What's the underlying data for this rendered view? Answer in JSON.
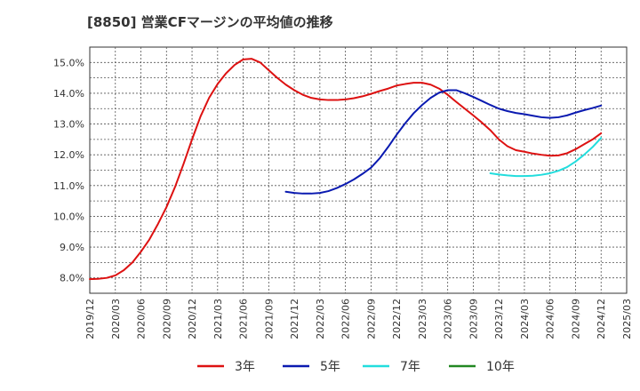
{
  "chart_data": {
    "type": "line",
    "title": "[8850]  営業CFマージンの平均値の推移",
    "xlabel": "",
    "ylabel": "",
    "x_ticks": [
      "2019/12",
      "2020/03",
      "2020/06",
      "2020/09",
      "2020/12",
      "2021/03",
      "2021/06",
      "2021/09",
      "2021/12",
      "2022/03",
      "2022/06",
      "2022/09",
      "2022/12",
      "2023/03",
      "2023/06",
      "2023/09",
      "2023/12",
      "2024/03",
      "2024/06",
      "2024/09",
      "2024/12",
      "2025/03"
    ],
    "y_ticks": [
      "8.0%",
      "9.0%",
      "10.0%",
      "11.0%",
      "12.0%",
      "13.0%",
      "14.0%",
      "15.0%"
    ],
    "ylim": [
      7.5,
      15.5
    ],
    "grid": true,
    "legend_position": "bottom",
    "series": [
      {
        "name": "3年",
        "color": "#dd1111",
        "points": [
          [
            "2019/12",
            7.96
          ],
          [
            "2020/01",
            7.97
          ],
          [
            "2020/02",
            8.0
          ],
          [
            "2020/03",
            8.08
          ],
          [
            "2020/04",
            8.25
          ],
          [
            "2020/05",
            8.5
          ],
          [
            "2020/06",
            8.85
          ],
          [
            "2020/07",
            9.25
          ],
          [
            "2020/08",
            9.75
          ],
          [
            "2020/09",
            10.3
          ],
          [
            "2020/10",
            10.95
          ],
          [
            "2020/11",
            11.7
          ],
          [
            "2020/12",
            12.5
          ],
          [
            "2021/01",
            13.25
          ],
          [
            "2021/02",
            13.85
          ],
          [
            "2021/03",
            14.3
          ],
          [
            "2021/04",
            14.65
          ],
          [
            "2021/05",
            14.92
          ],
          [
            "2021/06",
            15.1
          ],
          [
            "2021/07",
            15.12
          ],
          [
            "2021/08",
            15.0
          ],
          [
            "2021/09",
            14.75
          ],
          [
            "2021/10",
            14.5
          ],
          [
            "2021/11",
            14.28
          ],
          [
            "2021/12",
            14.1
          ],
          [
            "2022/01",
            13.95
          ],
          [
            "2022/02",
            13.85
          ],
          [
            "2022/03",
            13.8
          ],
          [
            "2022/04",
            13.78
          ],
          [
            "2022/05",
            13.78
          ],
          [
            "2022/06",
            13.8
          ],
          [
            "2022/07",
            13.84
          ],
          [
            "2022/08",
            13.9
          ],
          [
            "2022/09",
            13.98
          ],
          [
            "2022/10",
            14.07
          ],
          [
            "2022/11",
            14.15
          ],
          [
            "2022/12",
            14.25
          ],
          [
            "2023/01",
            14.3
          ],
          [
            "2023/02",
            14.34
          ],
          [
            "2023/03",
            14.34
          ],
          [
            "2023/04",
            14.28
          ],
          [
            "2023/05",
            14.15
          ],
          [
            "2023/06",
            13.95
          ],
          [
            "2023/07",
            13.72
          ],
          [
            "2023/08",
            13.5
          ],
          [
            "2023/09",
            13.28
          ],
          [
            "2023/10",
            13.05
          ],
          [
            "2023/11",
            12.8
          ],
          [
            "2023/12",
            12.5
          ],
          [
            "2024/01",
            12.28
          ],
          [
            "2024/02",
            12.15
          ],
          [
            "2024/03",
            12.1
          ],
          [
            "2024/04",
            12.04
          ],
          [
            "2024/05",
            12.0
          ],
          [
            "2024/06",
            11.97
          ],
          [
            "2024/07",
            11.98
          ],
          [
            "2024/08",
            12.05
          ],
          [
            "2024/09",
            12.18
          ],
          [
            "2024/10",
            12.34
          ],
          [
            "2024/11",
            12.5
          ],
          [
            "2024/12",
            12.7
          ]
        ]
      },
      {
        "name": "5年",
        "color": "#0a1ab0",
        "points": [
          [
            "2021/11",
            10.8
          ],
          [
            "2021/12",
            10.76
          ],
          [
            "2022/01",
            10.74
          ],
          [
            "2022/02",
            10.74
          ],
          [
            "2022/03",
            10.76
          ],
          [
            "2022/04",
            10.82
          ],
          [
            "2022/05",
            10.92
          ],
          [
            "2022/06",
            11.05
          ],
          [
            "2022/07",
            11.2
          ],
          [
            "2022/08",
            11.38
          ],
          [
            "2022/09",
            11.58
          ],
          [
            "2022/10",
            11.88
          ],
          [
            "2022/11",
            12.25
          ],
          [
            "2022/12",
            12.65
          ],
          [
            "2023/01",
            13.02
          ],
          [
            "2023/02",
            13.35
          ],
          [
            "2023/03",
            13.62
          ],
          [
            "2023/04",
            13.85
          ],
          [
            "2023/05",
            14.02
          ],
          [
            "2023/06",
            14.1
          ],
          [
            "2023/07",
            14.1
          ],
          [
            "2023/08",
            14.0
          ],
          [
            "2023/09",
            13.88
          ],
          [
            "2023/10",
            13.75
          ],
          [
            "2023/11",
            13.62
          ],
          [
            "2023/12",
            13.5
          ],
          [
            "2024/01",
            13.42
          ],
          [
            "2024/02",
            13.36
          ],
          [
            "2024/03",
            13.32
          ],
          [
            "2024/04",
            13.27
          ],
          [
            "2024/05",
            13.22
          ],
          [
            "2024/06",
            13.2
          ],
          [
            "2024/07",
            13.22
          ],
          [
            "2024/08",
            13.28
          ],
          [
            "2024/09",
            13.37
          ],
          [
            "2024/10",
            13.45
          ],
          [
            "2024/11",
            13.52
          ],
          [
            "2024/12",
            13.6
          ]
        ]
      },
      {
        "name": "7年",
        "color": "#22dddd",
        "points": [
          [
            "2023/11",
            11.4
          ],
          [
            "2023/12",
            11.36
          ],
          [
            "2024/01",
            11.33
          ],
          [
            "2024/02",
            11.31
          ],
          [
            "2024/03",
            11.31
          ],
          [
            "2024/04",
            11.32
          ],
          [
            "2024/05",
            11.35
          ],
          [
            "2024/06",
            11.4
          ],
          [
            "2024/07",
            11.48
          ],
          [
            "2024/08",
            11.6
          ],
          [
            "2024/09",
            11.78
          ],
          [
            "2024/10",
            12.0
          ],
          [
            "2024/11",
            12.25
          ],
          [
            "2024/12",
            12.55
          ]
        ]
      },
      {
        "name": "10年",
        "color": "#228822",
        "points": []
      }
    ]
  }
}
